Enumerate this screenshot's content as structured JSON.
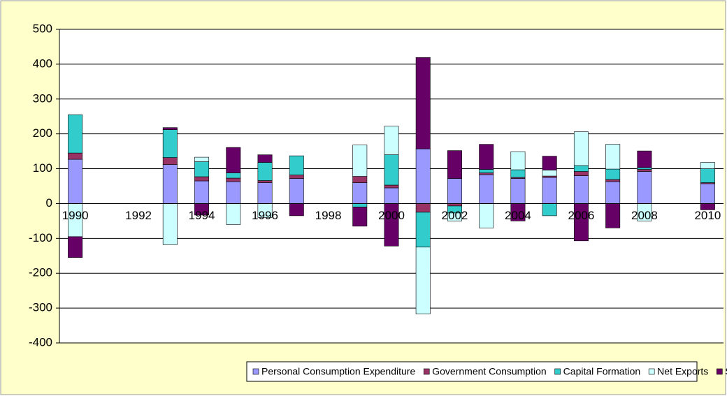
{
  "chart_data": {
    "type": "stacked_bar",
    "categories": [
      "1990",
      null,
      "1992",
      null,
      "1994",
      null,
      "1996",
      null,
      "1998",
      null,
      "2000",
      null,
      "2002",
      null,
      "2004",
      null,
      "2006",
      null,
      "2008",
      null,
      "2010"
    ],
    "series": [
      {
        "name": "Personal Consumption Expenditure",
        "color": "#9999ff",
        "values": [
          127,
          null,
          null,
          112,
          65,
          63,
          60,
          72,
          null,
          60,
          45,
          157,
          72,
          83,
          72,
          75,
          80,
          63,
          92,
          null,
          57
        ]
      },
      {
        "name": "Government Consumption",
        "color": "#993366",
        "values": [
          18,
          null,
          null,
          20,
          12,
          10,
          6,
          10,
          null,
          18,
          8,
          -25,
          -7,
          5,
          3,
          4,
          12,
          6,
          6,
          null,
          3
        ]
      },
      {
        "name": "Capital Formation",
        "color": "#33cccc",
        "values": [
          110,
          null,
          null,
          80,
          43,
          15,
          52,
          55,
          null,
          -10,
          87,
          -100,
          -20,
          10,
          22,
          -35,
          17,
          30,
          5,
          null,
          40
        ]
      },
      {
        "name": "Net Exports",
        "color": "#ccffff",
        "values": [
          -95,
          null,
          null,
          -118,
          13,
          -60,
          -40,
          0,
          null,
          90,
          82,
          -192,
          -23,
          -70,
          52,
          17,
          97,
          71,
          -50,
          null,
          18
        ]
      },
      {
        "name": "Statistical Discrepancy",
        "color": "#660066",
        "values": [
          -60,
          null,
          null,
          6,
          -33,
          73,
          22,
          -35,
          null,
          -55,
          -122,
          262,
          80,
          72,
          -50,
          40,
          -107,
          -70,
          48,
          null,
          -18
        ]
      }
    ],
    "ylim": [
      -400,
      500
    ],
    "yticks": [
      -400,
      -300,
      -200,
      -100,
      0,
      100,
      200,
      300,
      400,
      500
    ],
    "grid": true,
    "legend": "bottom"
  }
}
